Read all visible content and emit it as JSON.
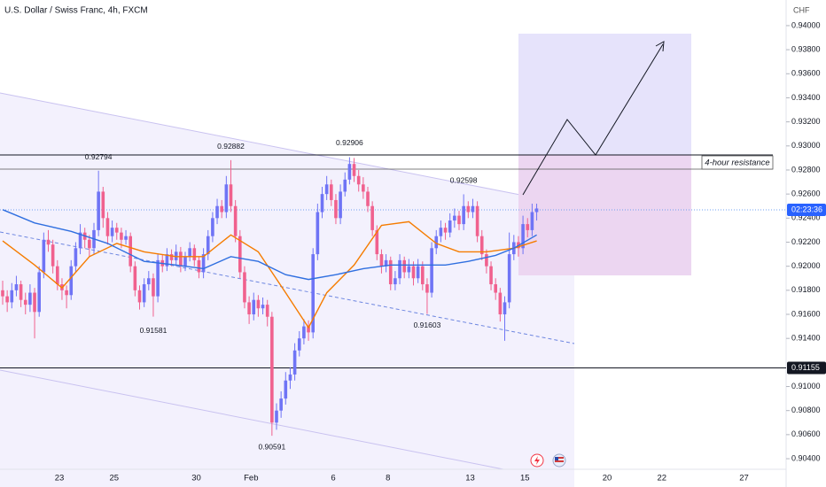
{
  "chart_data": {
    "type": "candlestick",
    "title": "U.S. Dollar / Swiss Franc, 4h, FXCM",
    "currency": "CHF",
    "up_color": "#6f74f5",
    "down_color": "#f0618e",
    "ylim": [
      0.90312,
      0.94213
    ],
    "yticks": [
      {
        "value": 0.904,
        "label": "0.90400"
      },
      {
        "value": 0.906,
        "label": "0.90600"
      },
      {
        "value": 0.908,
        "label": "0.90800"
      },
      {
        "value": 0.91,
        "label": "0.91000"
      },
      {
        "value": 0.914,
        "label": "0.91400"
      },
      {
        "value": 0.916,
        "label": "0.91600"
      },
      {
        "value": 0.918,
        "label": "0.91800"
      },
      {
        "value": 0.92,
        "label": "0.92000"
      },
      {
        "value": 0.922,
        "label": "0.92200"
      },
      {
        "value": 0.924,
        "label": "0.92400"
      },
      {
        "value": 0.926,
        "label": "0.92600"
      },
      {
        "value": 0.928,
        "label": "0.92800"
      },
      {
        "value": 0.93,
        "label": "0.93000"
      },
      {
        "value": 0.932,
        "label": "0.93200"
      },
      {
        "value": 0.934,
        "label": "0.93400"
      },
      {
        "value": 0.936,
        "label": "0.93600"
      },
      {
        "value": 0.938,
        "label": "0.93800"
      },
      {
        "value": 0.94,
        "label": "0.94000"
      }
    ],
    "days": [
      "23",
      null,
      "25",
      null,
      null,
      "30",
      null,
      "Feb",
      null,
      null,
      "6",
      null,
      "8",
      null,
      null,
      "13",
      null,
      "15",
      null,
      null,
      "20",
      null,
      "22",
      null,
      null,
      "27"
    ],
    "support_level": 0.91155,
    "resistance_label": "4-hour resistance",
    "countdown": "02:23:36",
    "candles": [
      [
        0.918,
        0.9188,
        0.9168,
        0.9175
      ],
      [
        0.9175,
        0.918,
        0.9162,
        0.917
      ],
      [
        0.917,
        0.9186,
        0.9165,
        0.918
      ],
      [
        0.918,
        0.9192,
        0.9175,
        0.9185
      ],
      [
        0.9185,
        0.9188,
        0.9166,
        0.9172
      ],
      [
        0.9172,
        0.9178,
        0.916,
        0.9168
      ],
      [
        0.9168,
        0.9185,
        0.9162,
        0.9178
      ],
      [
        0.9178,
        0.9182,
        0.914,
        0.9162
      ],
      [
        0.9162,
        0.92,
        0.9158,
        0.9195
      ],
      [
        0.9195,
        0.9228,
        0.919,
        0.9222
      ],
      [
        0.9222,
        0.923,
        0.9212,
        0.9218
      ],
      [
        0.9218,
        0.9222,
        0.9194,
        0.92
      ],
      [
        0.92,
        0.9205,
        0.918,
        0.9185
      ],
      [
        0.9185,
        0.919,
        0.9172,
        0.918
      ],
      [
        0.918,
        0.9184,
        0.9165,
        0.9176
      ],
      [
        0.9176,
        0.9205,
        0.9172,
        0.92
      ],
      [
        0.92,
        0.922,
        0.9195,
        0.9215
      ],
      [
        0.9215,
        0.9235,
        0.921,
        0.9228
      ],
      [
        0.9228,
        0.9232,
        0.9215,
        0.9222
      ],
      [
        0.9222,
        0.9226,
        0.9208,
        0.9215
      ],
      [
        0.9215,
        0.9236,
        0.921,
        0.923
      ],
      [
        0.923,
        0.92794,
        0.9225,
        0.9262
      ],
      [
        0.9262,
        0.9266,
        0.9232,
        0.924
      ],
      [
        0.924,
        0.9245,
        0.9218,
        0.9225
      ],
      [
        0.9225,
        0.9238,
        0.922,
        0.9232
      ],
      [
        0.9232,
        0.9236,
        0.9222,
        0.9228
      ],
      [
        0.9228,
        0.9232,
        0.9215,
        0.9222
      ],
      [
        0.9222,
        0.923,
        0.9218,
        0.9225
      ],
      [
        0.9225,
        0.9228,
        0.9195,
        0.92
      ],
      [
        0.92,
        0.9204,
        0.9175,
        0.918
      ],
      [
        0.918,
        0.9184,
        0.9164,
        0.917
      ],
      [
        0.917,
        0.919,
        0.9166,
        0.9185
      ],
      [
        0.9185,
        0.9196,
        0.918,
        0.919
      ],
      [
        0.919,
        0.9194,
        0.91581,
        0.9175
      ],
      [
        0.9175,
        0.921,
        0.917,
        0.9205
      ],
      [
        0.9205,
        0.921,
        0.9195,
        0.92
      ],
      [
        0.92,
        0.9215,
        0.9196,
        0.921
      ],
      [
        0.921,
        0.9214,
        0.92,
        0.9205
      ],
      [
        0.9205,
        0.9218,
        0.92,
        0.9212
      ],
      [
        0.9212,
        0.9216,
        0.9195,
        0.92
      ],
      [
        0.92,
        0.9212,
        0.9196,
        0.9208
      ],
      [
        0.9208,
        0.922,
        0.9204,
        0.9215
      ],
      [
        0.9215,
        0.9218,
        0.92,
        0.9205
      ],
      [
        0.9205,
        0.9208,
        0.919,
        0.9195
      ],
      [
        0.9195,
        0.9215,
        0.919,
        0.921
      ],
      [
        0.921,
        0.923,
        0.9205,
        0.9225
      ],
      [
        0.9225,
        0.9245,
        0.922,
        0.924
      ],
      [
        0.924,
        0.9256,
        0.9235,
        0.925
      ],
      [
        0.925,
        0.9255,
        0.924,
        0.9245
      ],
      [
        0.9245,
        0.9275,
        0.924,
        0.9268
      ],
      [
        0.9268,
        0.92882,
        0.9245,
        0.925
      ],
      [
        0.925,
        0.9255,
        0.922,
        0.9225
      ],
      [
        0.9225,
        0.923,
        0.919,
        0.9195
      ],
      [
        0.9195,
        0.92,
        0.9165,
        0.917
      ],
      [
        0.917,
        0.9175,
        0.9152,
        0.916
      ],
      [
        0.916,
        0.9178,
        0.9155,
        0.9172
      ],
      [
        0.9172,
        0.9176,
        0.9158,
        0.9165
      ],
      [
        0.9165,
        0.9174,
        0.916,
        0.9168
      ],
      [
        0.9168,
        0.9172,
        0.915,
        0.9158
      ],
      [
        0.9158,
        0.9162,
        0.90591,
        0.907
      ],
      [
        0.907,
        0.9086,
        0.9064,
        0.908
      ],
      [
        0.908,
        0.9096,
        0.9074,
        0.909
      ],
      [
        0.909,
        0.9112,
        0.9085,
        0.9105
      ],
      [
        0.9105,
        0.9116,
        0.9098,
        0.911
      ],
      [
        0.911,
        0.9136,
        0.9105,
        0.913
      ],
      [
        0.913,
        0.9146,
        0.9125,
        0.914
      ],
      [
        0.914,
        0.9156,
        0.9135,
        0.915
      ],
      [
        0.915,
        0.9155,
        0.9138,
        0.9145
      ],
      [
        0.9145,
        0.9215,
        0.914,
        0.921
      ],
      [
        0.921,
        0.9252,
        0.9205,
        0.9245
      ],
      [
        0.9245,
        0.9266,
        0.924,
        0.926
      ],
      [
        0.926,
        0.9275,
        0.9255,
        0.9268
      ],
      [
        0.9268,
        0.9272,
        0.925,
        0.9255
      ],
      [
        0.9255,
        0.926,
        0.9235,
        0.924
      ],
      [
        0.924,
        0.9268,
        0.9235,
        0.9262
      ],
      [
        0.9262,
        0.9278,
        0.9258,
        0.9272
      ],
      [
        0.9272,
        0.92906,
        0.9268,
        0.9285
      ],
      [
        0.9285,
        0.929,
        0.927,
        0.9275
      ],
      [
        0.9275,
        0.928,
        0.9262,
        0.9268
      ],
      [
        0.9268,
        0.9274,
        0.9256,
        0.9262
      ],
      [
        0.9262,
        0.9266,
        0.9245,
        0.925
      ],
      [
        0.925,
        0.9254,
        0.9225,
        0.923
      ],
      [
        0.923,
        0.9234,
        0.9205,
        0.921
      ],
      [
        0.921,
        0.9214,
        0.9194,
        0.92
      ],
      [
        0.92,
        0.921,
        0.9195,
        0.9205
      ],
      [
        0.9205,
        0.9208,
        0.918,
        0.9185
      ],
      [
        0.9185,
        0.9196,
        0.918,
        0.919
      ],
      [
        0.919,
        0.921,
        0.9185,
        0.9205
      ],
      [
        0.9205,
        0.9208,
        0.919,
        0.9195
      ],
      [
        0.9195,
        0.9206,
        0.919,
        0.92
      ],
      [
        0.92,
        0.9204,
        0.9184,
        0.919
      ],
      [
        0.919,
        0.9206,
        0.9186,
        0.92
      ],
      [
        0.92,
        0.9204,
        0.918,
        0.9185
      ],
      [
        0.9185,
        0.919,
        0.91603,
        0.9178
      ],
      [
        0.9178,
        0.922,
        0.9174,
        0.9215
      ],
      [
        0.9215,
        0.923,
        0.921,
        0.9225
      ],
      [
        0.9225,
        0.9238,
        0.922,
        0.9232
      ],
      [
        0.9232,
        0.9236,
        0.9222,
        0.9228
      ],
      [
        0.9228,
        0.9244,
        0.9224,
        0.9238
      ],
      [
        0.9238,
        0.9248,
        0.9232,
        0.9242
      ],
      [
        0.9242,
        0.9246,
        0.923,
        0.9235
      ],
      [
        0.9235,
        0.92598,
        0.923,
        0.925
      ],
      [
        0.925,
        0.9254,
        0.924,
        0.9245
      ],
      [
        0.9245,
        0.9256,
        0.924,
        0.925
      ],
      [
        0.925,
        0.9254,
        0.922,
        0.9225
      ],
      [
        0.9225,
        0.923,
        0.9205,
        0.921
      ],
      [
        0.921,
        0.9214,
        0.9194,
        0.92
      ],
      [
        0.92,
        0.9204,
        0.918,
        0.9185
      ],
      [
        0.9185,
        0.919,
        0.9172,
        0.9178
      ],
      [
        0.9178,
        0.9182,
        0.9154,
        0.916
      ],
      [
        0.916,
        0.9175,
        0.9138,
        0.917
      ],
      [
        0.917,
        0.9228,
        0.9165,
        0.921
      ],
      [
        0.921,
        0.9226,
        0.9205,
        0.922
      ],
      [
        0.922,
        0.9225,
        0.9208,
        0.9215
      ],
      [
        0.9215,
        0.9242,
        0.921,
        0.9235
      ],
      [
        0.9235,
        0.924,
        0.9224,
        0.923
      ],
      [
        0.923,
        0.9252,
        0.9225,
        0.9245
      ],
      [
        0.9245,
        0.9252,
        0.9238,
        0.9248
      ]
    ],
    "moving_averages": [
      {
        "color": "#f57c00",
        "x": [
          0,
          7,
          13,
          19,
          25,
          31,
          38,
          44,
          50,
          56,
          62,
          67,
          71,
          77,
          83,
          89,
          95,
          100,
          106,
          112,
          117
        ],
        "values": [
          0.9221,
          0.9201,
          0.9182,
          0.9208,
          0.9219,
          0.9212,
          0.9208,
          0.9208,
          0.9226,
          0.9212,
          0.9178,
          0.9149,
          0.9178,
          0.9201,
          0.9234,
          0.9237,
          0.9219,
          0.9212,
          0.9212,
          0.9215,
          0.9221
        ]
      },
      {
        "color": "#2f6fe0",
        "x": [
          0,
          7,
          15,
          23,
          31,
          38,
          44,
          50,
          56,
          62,
          67,
          73,
          79,
          85,
          91,
          97,
          102,
          108,
          112,
          117
        ],
        "values": [
          0.9247,
          0.9236,
          0.9229,
          0.9219,
          0.9204,
          0.9201,
          0.9198,
          0.9208,
          0.9204,
          0.9193,
          0.9189,
          0.9193,
          0.9198,
          0.9201,
          0.9201,
          0.9201,
          0.9204,
          0.9209,
          0.9215,
          0.9226
        ]
      }
    ]
  }
}
